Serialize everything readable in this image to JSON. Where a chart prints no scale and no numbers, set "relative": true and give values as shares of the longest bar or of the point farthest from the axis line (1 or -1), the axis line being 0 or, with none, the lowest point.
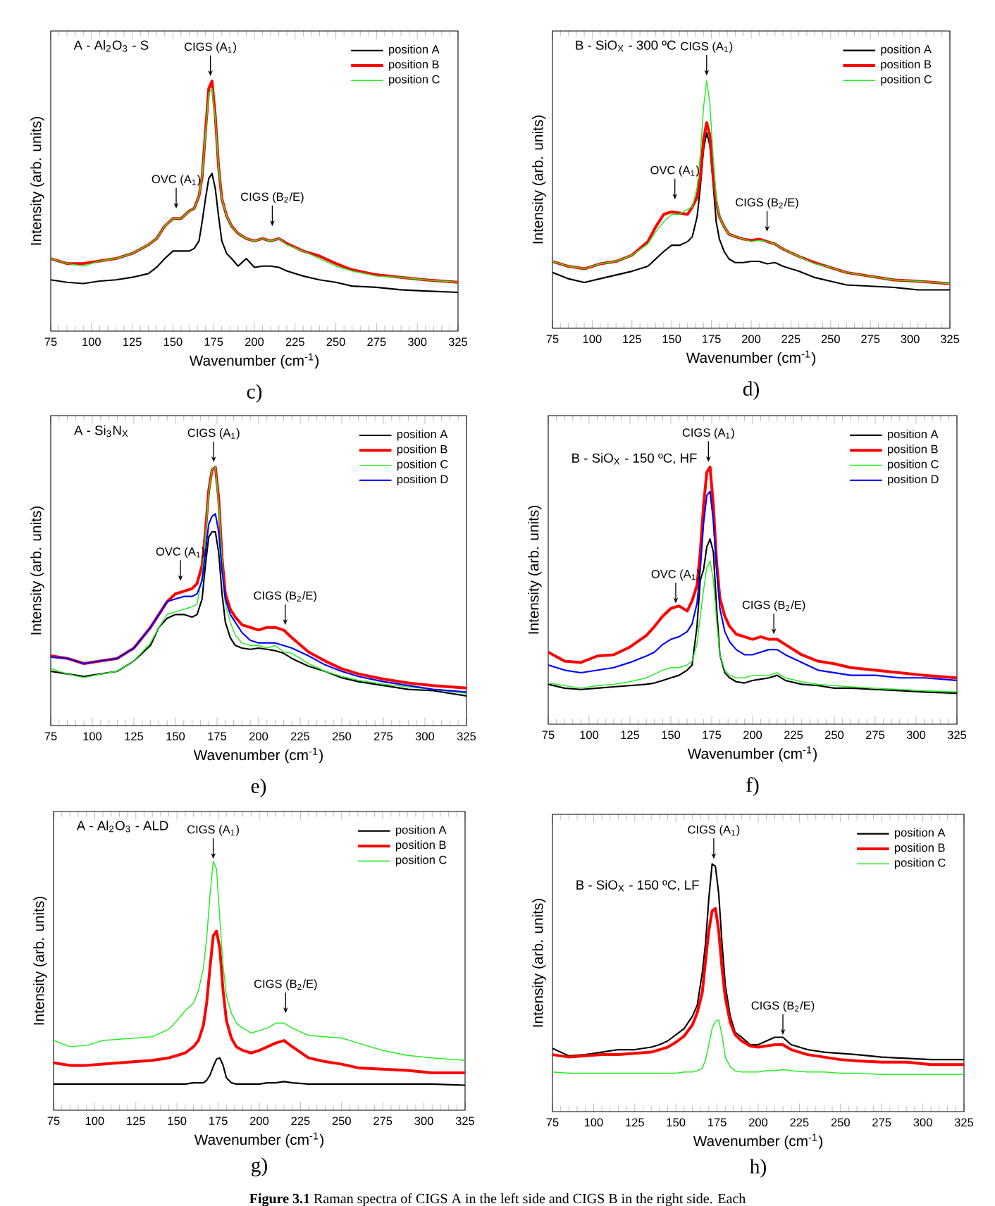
{
  "chart_data": [
    {
      "type": "line",
      "relative": true,
      "tick_labels": "x",
      "legend": "top right",
      "title": "A - Al$_{2}$O$_{3}$ - S",
      "xlabel": "Wavenumber (cm$^{-1}$)",
      "ylabel": "Intensity (arb. units)",
      "xlim": [
        75,
        325
      ],
      "xticks": [
        75,
        100,
        125,
        150,
        175,
        200,
        225,
        250,
        275,
        300,
        325
      ],
      "x": [
        75,
        85,
        95,
        105,
        115,
        125,
        135,
        140,
        145,
        150,
        155,
        160,
        163,
        166,
        168,
        170,
        172,
        174,
        176,
        178,
        180,
        183,
        186,
        190,
        195,
        200,
        205,
        210,
        215,
        220,
        230,
        240,
        250,
        260,
        275,
        290,
        305,
        325
      ],
      "series": [
        {
          "name": "position A",
          "color": "#000000",
          "values": [
            0.205,
            0.195,
            0.19,
            0.2,
            0.205,
            0.215,
            0.23,
            0.255,
            0.29,
            0.32,
            0.32,
            0.32,
            0.33,
            0.36,
            0.44,
            0.53,
            0.61,
            0.63,
            0.57,
            0.46,
            0.36,
            0.31,
            0.29,
            0.26,
            0.29,
            0.255,
            0.26,
            0.26,
            0.255,
            0.24,
            0.22,
            0.205,
            0.195,
            0.18,
            0.175,
            0.165,
            0.16,
            0.155
          ]
        },
        {
          "name": "position B",
          "color": "#ff0000",
          "values": [
            0.29,
            0.27,
            0.27,
            0.28,
            0.29,
            0.31,
            0.345,
            0.37,
            0.42,
            0.45,
            0.45,
            0.48,
            0.49,
            0.54,
            0.62,
            0.8,
            0.97,
            1.0,
            0.86,
            0.66,
            0.53,
            0.46,
            0.42,
            0.39,
            0.37,
            0.36,
            0.37,
            0.36,
            0.37,
            0.35,
            0.32,
            0.3,
            0.27,
            0.245,
            0.225,
            0.215,
            0.205,
            0.195
          ]
        },
        {
          "name": "position C",
          "color": "#22ee22",
          "values": [
            0.29,
            0.27,
            0.26,
            0.28,
            0.29,
            0.31,
            0.345,
            0.37,
            0.42,
            0.45,
            0.45,
            0.48,
            0.49,
            0.54,
            0.62,
            0.79,
            0.95,
            0.97,
            0.85,
            0.66,
            0.53,
            0.46,
            0.42,
            0.39,
            0.37,
            0.36,
            0.37,
            0.36,
            0.37,
            0.345,
            0.32,
            0.29,
            0.26,
            0.24,
            0.22,
            0.215,
            0.205,
            0.195
          ]
        }
      ],
      "annotations": [
        {
          "text": "CIGS (A$_{1}$)",
          "x": 173,
          "y": 1.02
        },
        {
          "text": "OVC (A$_{1}$)",
          "x": 152,
          "y": 0.49
        },
        {
          "text": "CIGS (B$_{2}$/E)",
          "x": 211,
          "y": 0.42
        },
        "c)"
      ]
    },
    {
      "type": "line",
      "relative": true,
      "tick_labels": "x",
      "legend": "top right",
      "title": "B - SiO$_{X}$ - 300 ºC",
      "xlabel": "Wavenumber (cm$^{-1}$)",
      "ylabel": "Intensity (arb. units)",
      "xlim": [
        75,
        325
      ],
      "xticks": [
        75,
        100,
        125,
        150,
        175,
        200,
        225,
        250,
        275,
        300,
        325
      ],
      "x": [
        75,
        85,
        95,
        105,
        115,
        125,
        135,
        140,
        145,
        150,
        155,
        160,
        163,
        166,
        168,
        170,
        172,
        174,
        176,
        178,
        180,
        183,
        186,
        190,
        195,
        200,
        205,
        210,
        215,
        220,
        230,
        240,
        250,
        260,
        275,
        290,
        305,
        325
      ],
      "series": [
        {
          "name": "position A",
          "color": "#000000",
          "values": [
            0.225,
            0.2,
            0.185,
            0.2,
            0.215,
            0.23,
            0.25,
            0.28,
            0.31,
            0.335,
            0.335,
            0.35,
            0.37,
            0.45,
            0.57,
            0.72,
            0.79,
            0.74,
            0.59,
            0.43,
            0.36,
            0.31,
            0.28,
            0.265,
            0.265,
            0.27,
            0.27,
            0.26,
            0.265,
            0.25,
            0.23,
            0.205,
            0.19,
            0.175,
            0.17,
            0.165,
            0.155,
            0.155
          ]
        },
        {
          "name": "position B",
          "color": "#ff0000",
          "values": [
            0.27,
            0.25,
            0.24,
            0.26,
            0.27,
            0.295,
            0.35,
            0.41,
            0.46,
            0.47,
            0.465,
            0.46,
            0.49,
            0.53,
            0.61,
            0.76,
            0.83,
            0.78,
            0.62,
            0.51,
            0.45,
            0.41,
            0.38,
            0.37,
            0.36,
            0.355,
            0.36,
            0.35,
            0.34,
            0.32,
            0.29,
            0.265,
            0.245,
            0.225,
            0.21,
            0.195,
            0.19,
            0.18
          ]
        },
        {
          "name": "position C",
          "color": "#22ee22",
          "values": [
            0.27,
            0.25,
            0.24,
            0.26,
            0.27,
            0.295,
            0.34,
            0.39,
            0.43,
            0.46,
            0.46,
            0.48,
            0.49,
            0.57,
            0.7,
            0.89,
            1.0,
            0.91,
            0.7,
            0.53,
            0.45,
            0.41,
            0.38,
            0.37,
            0.36,
            0.35,
            0.355,
            0.35,
            0.34,
            0.32,
            0.29,
            0.26,
            0.245,
            0.225,
            0.21,
            0.195,
            0.19,
            0.18
          ]
        }
      ],
      "annotations": [
        {
          "text": "CIGS (A$_{1}$)",
          "x": 172,
          "y": 1.02
        },
        {
          "text": "OVC (A$_{1}$)",
          "x": 152,
          "y": 0.52
        },
        {
          "text": "CIGS (B$_{2}$/E)",
          "x": 210,
          "y": 0.39
        },
        "d)"
      ]
    },
    {
      "type": "line",
      "relative": true,
      "tick_labels": "x",
      "legend": "top right",
      "title": "A - Si$_{3}$N$_{X}$",
      "xlabel": "Wavenumber (cm$^{-1}$)",
      "ylabel": "Intensity (arb. units)",
      "xlim": [
        75,
        325
      ],
      "xticks": [
        75,
        100,
        125,
        150,
        175,
        200,
        225,
        250,
        275,
        300,
        325
      ],
      "x": [
        75,
        85,
        95,
        105,
        115,
        125,
        135,
        140,
        145,
        150,
        155,
        160,
        163,
        166,
        168,
        170,
        172,
        174,
        176,
        178,
        180,
        183,
        186,
        190,
        195,
        200,
        205,
        210,
        215,
        220,
        230,
        240,
        250,
        260,
        275,
        290,
        305,
        325
      ],
      "series": [
        {
          "name": "position A",
          "color": "#000000",
          "values": [
            0.21,
            0.2,
            0.19,
            0.2,
            0.21,
            0.25,
            0.31,
            0.38,
            0.415,
            0.43,
            0.43,
            0.42,
            0.43,
            0.49,
            0.62,
            0.73,
            0.75,
            0.75,
            0.67,
            0.51,
            0.4,
            0.34,
            0.31,
            0.3,
            0.295,
            0.3,
            0.295,
            0.29,
            0.28,
            0.26,
            0.23,
            0.21,
            0.185,
            0.17,
            0.155,
            0.14,
            0.135,
            0.115
          ]
        },
        {
          "name": "position B",
          "color": "#ff0000",
          "values": [
            0.27,
            0.26,
            0.24,
            0.25,
            0.26,
            0.3,
            0.38,
            0.43,
            0.48,
            0.51,
            0.52,
            0.53,
            0.55,
            0.62,
            0.75,
            0.91,
            0.99,
            1.0,
            0.88,
            0.65,
            0.51,
            0.45,
            0.42,
            0.39,
            0.38,
            0.37,
            0.38,
            0.38,
            0.37,
            0.34,
            0.285,
            0.25,
            0.22,
            0.2,
            0.18,
            0.165,
            0.155,
            0.145
          ]
        },
        {
          "name": "position C",
          "color": "#22ee22",
          "values": [
            0.22,
            0.2,
            0.185,
            0.2,
            0.21,
            0.25,
            0.32,
            0.38,
            0.43,
            0.44,
            0.45,
            0.46,
            0.47,
            0.58,
            0.73,
            0.9,
            0.99,
            1.0,
            0.86,
            0.64,
            0.47,
            0.4,
            0.35,
            0.32,
            0.31,
            0.31,
            0.3,
            0.31,
            0.285,
            0.28,
            0.24,
            0.21,
            0.19,
            0.175,
            0.16,
            0.15,
            0.14,
            0.125
          ]
        },
        {
          "name": "position D",
          "color": "#0000ff",
          "values": [
            0.265,
            0.26,
            0.24,
            0.25,
            0.26,
            0.3,
            0.38,
            0.43,
            0.48,
            0.49,
            0.5,
            0.5,
            0.51,
            0.56,
            0.67,
            0.78,
            0.81,
            0.82,
            0.75,
            0.6,
            0.49,
            0.43,
            0.4,
            0.36,
            0.33,
            0.32,
            0.32,
            0.32,
            0.31,
            0.3,
            0.27,
            0.235,
            0.21,
            0.19,
            0.17,
            0.155,
            0.14,
            0.13
          ]
        }
      ],
      "annotations": [
        {
          "text": "CIGS (A$_{1}$)",
          "x": 173,
          "y": 1.02
        },
        {
          "text": "OVC (A$_{1}$)",
          "x": 153,
          "y": 0.56
        },
        {
          "text": "CIGS (B$_{2}$/E)",
          "x": 216,
          "y": 0.39
        },
        "e)"
      ]
    },
    {
      "type": "line",
      "relative": true,
      "tick_labels": "x",
      "legend": "top right",
      "title": "B - SiO$_{X}$ - 150 ºC, HF",
      "xlabel": "Wavenumber (cm$^{-1}$)",
      "ylabel": "Intensity (arb. units)",
      "xlim": [
        75,
        325
      ],
      "xticks": [
        75,
        100,
        125,
        150,
        175,
        200,
        225,
        250,
        275,
        300,
        325
      ],
      "x": [
        75,
        85,
        95,
        105,
        115,
        125,
        135,
        140,
        145,
        150,
        155,
        160,
        163,
        166,
        168,
        170,
        172,
        174,
        176,
        178,
        180,
        183,
        186,
        190,
        195,
        200,
        205,
        210,
        215,
        220,
        230,
        240,
        250,
        260,
        275,
        290,
        305,
        325
      ],
      "series": [
        {
          "name": "position A",
          "color": "#000000",
          "values": [
            0.155,
            0.14,
            0.135,
            0.14,
            0.145,
            0.15,
            0.155,
            0.16,
            0.17,
            0.18,
            0.19,
            0.21,
            0.23,
            0.38,
            0.56,
            0.6,
            0.69,
            0.72,
            0.67,
            0.45,
            0.27,
            0.2,
            0.18,
            0.165,
            0.16,
            0.17,
            0.175,
            0.18,
            0.19,
            0.17,
            0.155,
            0.15,
            0.14,
            0.14,
            0.135,
            0.13,
            0.125,
            0.12
          ]
        },
        {
          "name": "position B",
          "color": "#ff0000",
          "values": [
            0.28,
            0.245,
            0.24,
            0.265,
            0.27,
            0.3,
            0.345,
            0.38,
            0.42,
            0.45,
            0.46,
            0.44,
            0.48,
            0.54,
            0.67,
            0.85,
            0.98,
            1.0,
            0.85,
            0.63,
            0.49,
            0.42,
            0.38,
            0.35,
            0.34,
            0.33,
            0.34,
            0.33,
            0.33,
            0.31,
            0.27,
            0.245,
            0.235,
            0.22,
            0.21,
            0.2,
            0.19,
            0.18
          ]
        },
        {
          "name": "position C",
          "color": "#22ee22",
          "values": [
            0.16,
            0.15,
            0.14,
            0.15,
            0.155,
            0.165,
            0.18,
            0.195,
            0.21,
            0.22,
            0.22,
            0.23,
            0.245,
            0.31,
            0.42,
            0.52,
            0.61,
            0.635,
            0.56,
            0.4,
            0.27,
            0.21,
            0.19,
            0.18,
            0.18,
            0.19,
            0.19,
            0.19,
            0.2,
            0.18,
            0.165,
            0.155,
            0.15,
            0.145,
            0.14,
            0.135,
            0.13,
            0.125
          ]
        },
        {
          "name": "position D",
          "color": "#0000ff",
          "values": [
            0.23,
            0.21,
            0.2,
            0.21,
            0.22,
            0.24,
            0.265,
            0.28,
            0.31,
            0.33,
            0.34,
            0.36,
            0.39,
            0.47,
            0.6,
            0.78,
            0.89,
            0.905,
            0.79,
            0.6,
            0.45,
            0.36,
            0.32,
            0.29,
            0.27,
            0.27,
            0.28,
            0.29,
            0.29,
            0.27,
            0.24,
            0.21,
            0.2,
            0.19,
            0.19,
            0.18,
            0.18,
            0.17
          ]
        }
      ],
      "annotations": [
        {
          "text": "CIGS (A$_{1}$)",
          "x": 173,
          "y": 1.02
        },
        {
          "text": "OVC (A$_{1}$)",
          "x": 153,
          "y": 0.47
        },
        {
          "text": "CIGS (B$_{2}$/E)",
          "x": 213,
          "y": 0.35
        },
        "f)"
      ]
    },
    {
      "type": "line",
      "relative": true,
      "tick_labels": "x",
      "legend": "top right",
      "title": "A - Al$_{2}$O$_{3}$ - ALD",
      "xlabel": "Wavenumber (cm$^{-1}$)",
      "ylabel": "Intensity (arb. units)",
      "xlim": [
        75,
        325
      ],
      "xticks": [
        75,
        100,
        125,
        150,
        175,
        200,
        225,
        250,
        275,
        300,
        325
      ],
      "x": [
        75,
        85,
        95,
        105,
        115,
        125,
        135,
        140,
        145,
        150,
        155,
        160,
        163,
        166,
        168,
        170,
        172,
        174,
        176,
        178,
        180,
        183,
        186,
        190,
        195,
        200,
        205,
        210,
        215,
        220,
        230,
        240,
        250,
        260,
        275,
        290,
        305,
        325
      ],
      "series": [
        {
          "name": "position A",
          "color": "#000000",
          "values": [
            0.105,
            0.105,
            0.105,
            0.105,
            0.105,
            0.105,
            0.105,
            0.105,
            0.105,
            0.105,
            0.105,
            0.11,
            0.11,
            0.11,
            0.12,
            0.14,
            0.175,
            0.205,
            0.21,
            0.18,
            0.13,
            0.11,
            0.105,
            0.105,
            0.105,
            0.105,
            0.11,
            0.11,
            0.115,
            0.11,
            0.105,
            0.105,
            0.105,
            0.105,
            0.105,
            0.105,
            0.105,
            0.1
          ]
        },
        {
          "name": "position B",
          "color": "#ff0000",
          "values": [
            0.19,
            0.18,
            0.18,
            0.185,
            0.19,
            0.195,
            0.2,
            0.205,
            0.21,
            0.22,
            0.23,
            0.255,
            0.28,
            0.34,
            0.43,
            0.57,
            0.7,
            0.72,
            0.65,
            0.48,
            0.36,
            0.29,
            0.255,
            0.24,
            0.23,
            0.24,
            0.255,
            0.27,
            0.28,
            0.255,
            0.21,
            0.195,
            0.185,
            0.17,
            0.165,
            0.16,
            0.15,
            0.15
          ]
        },
        {
          "name": "position C",
          "color": "#22ee22",
          "values": [
            0.28,
            0.255,
            0.26,
            0.28,
            0.285,
            0.29,
            0.295,
            0.31,
            0.325,
            0.36,
            0.4,
            0.43,
            0.48,
            0.57,
            0.69,
            0.86,
            1.0,
            0.97,
            0.77,
            0.58,
            0.46,
            0.39,
            0.35,
            0.33,
            0.31,
            0.32,
            0.33,
            0.35,
            0.35,
            0.33,
            0.3,
            0.295,
            0.29,
            0.27,
            0.24,
            0.22,
            0.21,
            0.2
          ]
        }
      ],
      "annotations": [
        {
          "text": "CIGS (A$_{1}$)",
          "x": 172,
          "y": 1.01
        },
        {
          "text": "CIGS (B$_{2}$/E)",
          "x": 216,
          "y": 0.39
        },
        "g)"
      ]
    },
    {
      "type": "line",
      "relative": true,
      "tick_labels": "x",
      "legend": "top right",
      "title": "B - SiO$_{X}$ - 150 ºC, LF",
      "xlabel": "Wavenumber (cm$^{-1}$)",
      "ylabel": "Intensity (arb. units)",
      "xlim": [
        75,
        325
      ],
      "xticks": [
        75,
        100,
        125,
        150,
        175,
        200,
        225,
        250,
        275,
        300,
        325
      ],
      "x": [
        75,
        85,
        95,
        105,
        115,
        125,
        135,
        140,
        145,
        150,
        155,
        160,
        163,
        166,
        168,
        170,
        172,
        174,
        176,
        178,
        180,
        183,
        186,
        190,
        195,
        200,
        205,
        210,
        215,
        220,
        230,
        240,
        250,
        260,
        275,
        290,
        305,
        325
      ],
      "series": [
        {
          "name": "position A",
          "color": "#000000",
          "values": [
            0.255,
            0.225,
            0.23,
            0.24,
            0.25,
            0.25,
            0.26,
            0.27,
            0.285,
            0.31,
            0.335,
            0.385,
            0.43,
            0.56,
            0.68,
            0.86,
            1.0,
            0.99,
            0.88,
            0.68,
            0.51,
            0.385,
            0.32,
            0.3,
            0.27,
            0.27,
            0.285,
            0.3,
            0.3,
            0.27,
            0.25,
            0.24,
            0.235,
            0.23,
            0.22,
            0.215,
            0.21,
            0.21
          ]
        },
        {
          "name": "position B",
          "color": "#ff0000",
          "values": [
            0.23,
            0.22,
            0.225,
            0.23,
            0.23,
            0.235,
            0.24,
            0.25,
            0.26,
            0.28,
            0.305,
            0.35,
            0.4,
            0.48,
            0.61,
            0.73,
            0.81,
            0.82,
            0.73,
            0.58,
            0.46,
            0.36,
            0.31,
            0.285,
            0.265,
            0.26,
            0.265,
            0.27,
            0.27,
            0.25,
            0.23,
            0.22,
            0.21,
            0.205,
            0.2,
            0.2,
            0.19,
            0.19
          ]
        },
        {
          "name": "position C",
          "color": "#22ee22",
          "values": [
            0.16,
            0.155,
            0.155,
            0.155,
            0.155,
            0.155,
            0.155,
            0.155,
            0.155,
            0.155,
            0.16,
            0.16,
            0.165,
            0.175,
            0.21,
            0.27,
            0.335,
            0.365,
            0.37,
            0.31,
            0.22,
            0.18,
            0.165,
            0.16,
            0.16,
            0.16,
            0.165,
            0.165,
            0.17,
            0.165,
            0.16,
            0.16,
            0.155,
            0.155,
            0.15,
            0.15,
            0.15,
            0.15
          ]
        }
      ],
      "annotations": [
        {
          "text": "CIGS (A$_{1}$)",
          "x": 173,
          "y": 1.02
        },
        {
          "text": "CIGS (B$_{2}$/E)",
          "x": 215,
          "y": 0.31
        },
        "h)",
        "**Figure 3.1** Raman spectra of CIGS A in the left side and CIGS B in the right side. Each"
      ]
    }
  ]
}
